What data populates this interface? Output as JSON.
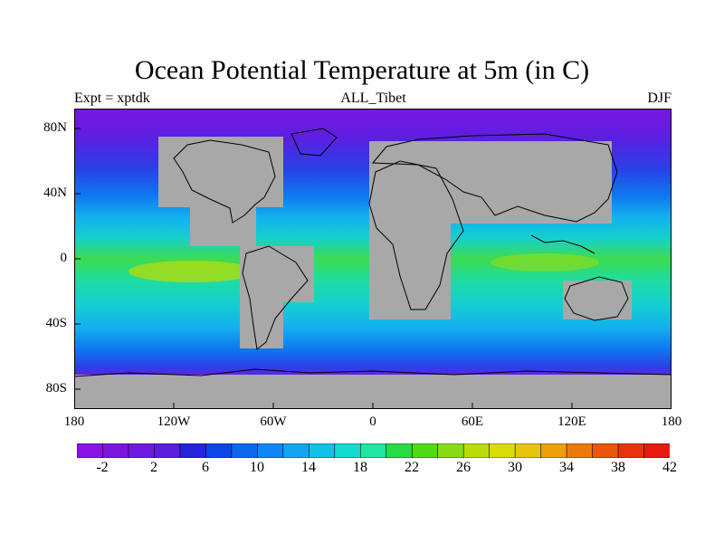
{
  "title": "Ocean Potential Temperature at 5m (in C)",
  "left_string": "Expt = xptdk",
  "center_string": "ALL_Tibet",
  "right_string": "DJF",
  "lat_labels": [
    "80N",
    "40N",
    "0",
    "40S",
    "80S"
  ],
  "lon_labels": [
    "180",
    "120W",
    "60W",
    "0",
    "60E",
    "120E",
    "180"
  ],
  "colorbar": {
    "colors": [
      "#8a12e8",
      "#7a16e0",
      "#6c1ae0",
      "#5a1ee0",
      "#2424dc",
      "#0b46e6",
      "#0d67ef",
      "#0f88f5",
      "#12a6f2",
      "#11c2e6",
      "#13dbd0",
      "#1ee6a3",
      "#25dc44",
      "#4fdc16",
      "#88dc14",
      "#bcdc0a",
      "#dcdc0a",
      "#e8c40a",
      "#eca00a",
      "#ec7a0a",
      "#ea560a",
      "#e8340a",
      "#e61a12"
    ],
    "tick_labels": [
      "-2",
      "2",
      "6",
      "10",
      "14",
      "18",
      "22",
      "26",
      "30",
      "34",
      "38",
      "42"
    ]
  },
  "map_colors": {
    "land": "#a8a8a8",
    "coastline": "#000000",
    "ocean_palette": [
      "#7a16e0",
      "#5a20e0",
      "#2a40e6",
      "#0f78f0",
      "#12b0ee",
      "#14d0d0",
      "#20dca0",
      "#3cdc50",
      "#80dc14",
      "#b8dc0a"
    ]
  }
}
